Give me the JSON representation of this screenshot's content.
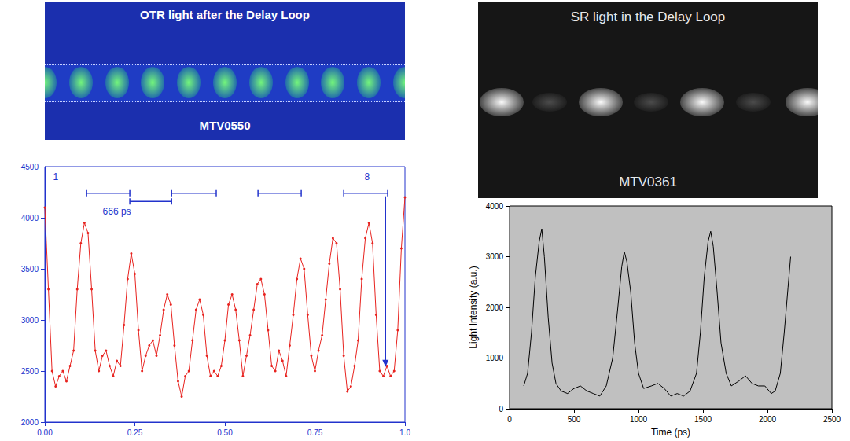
{
  "images": [
    {
      "title": "OTR light after the Delay Loop",
      "label": "MTV0550"
    },
    {
      "title": "SR light in the Delay Loop",
      "label": "MTV0361"
    }
  ],
  "chart_data": [
    {
      "type": "line",
      "x": [
        0.0,
        0.01,
        0.02,
        0.03,
        0.04,
        0.05,
        0.06,
        0.07,
        0.08,
        0.09,
        0.1,
        0.11,
        0.12,
        0.13,
        0.14,
        0.15,
        0.16,
        0.17,
        0.18,
        0.19,
        0.2,
        0.21,
        0.22,
        0.23,
        0.24,
        0.25,
        0.26,
        0.27,
        0.28,
        0.29,
        0.3,
        0.31,
        0.32,
        0.33,
        0.34,
        0.35,
        0.36,
        0.37,
        0.38,
        0.39,
        0.4,
        0.41,
        0.42,
        0.43,
        0.44,
        0.45,
        0.46,
        0.47,
        0.48,
        0.49,
        0.5,
        0.51,
        0.52,
        0.53,
        0.54,
        0.55,
        0.56,
        0.57,
        0.58,
        0.59,
        0.6,
        0.61,
        0.62,
        0.63,
        0.64,
        0.65,
        0.66,
        0.67,
        0.68,
        0.69,
        0.7,
        0.71,
        0.72,
        0.73,
        0.74,
        0.75,
        0.76,
        0.77,
        0.78,
        0.79,
        0.8,
        0.81,
        0.82,
        0.83,
        0.84,
        0.85,
        0.86,
        0.87,
        0.88,
        0.89,
        0.9,
        0.91,
        0.92,
        0.93,
        0.94,
        0.95,
        0.96,
        0.97,
        0.98,
        0.99,
        1.0
      ],
      "values": [
        4100,
        3300,
        2500,
        2350,
        2450,
        2500,
        2400,
        2550,
        2700,
        3300,
        3750,
        3950,
        3850,
        3300,
        2700,
        2500,
        2650,
        2700,
        2550,
        2450,
        2600,
        2550,
        2950,
        3400,
        3650,
        3450,
        2900,
        2500,
        2650,
        2750,
        2800,
        2650,
        2850,
        3100,
        3250,
        3150,
        2750,
        2400,
        2250,
        2450,
        2500,
        2800,
        3100,
        3200,
        3050,
        2650,
        2450,
        2500,
        2450,
        2550,
        2800,
        3150,
        3250,
        3100,
        2800,
        2450,
        2650,
        2850,
        3100,
        3350,
        3400,
        3250,
        2900,
        2550,
        2500,
        2700,
        2600,
        2450,
        2750,
        3050,
        3400,
        3600,
        3500,
        3050,
        2650,
        2500,
        2700,
        2850,
        3200,
        3550,
        3800,
        3750,
        3300,
        2650,
        2300,
        2350,
        2550,
        2800,
        3400,
        3800,
        3950,
        3750,
        3050,
        2500,
        2450,
        2550,
        2450,
        2500,
        2900,
        3700,
        4200
      ],
      "color": "#e8231f",
      "marker": "circle",
      "line_style": "solid",
      "xlim": [
        0,
        1
      ],
      "xticks": [
        {
          "value": 0,
          "label": "0.00"
        },
        0.25,
        {
          "value": 0.5,
          "label": "0.50"
        },
        0.75,
        {
          "value": 1,
          "label": "1.0"
        }
      ],
      "ylim": [
        2000,
        4500
      ],
      "yticks": [
        2000,
        2500,
        3000,
        3500,
        4000,
        4500
      ],
      "grid": false,
      "annotations": [
        {
          "text": "1",
          "x": 0.03,
          "y": 4400
        },
        {
          "text": "8",
          "x": 0.895,
          "y": 4400
        },
        {
          "text": "666 ps",
          "x": 0.2,
          "y": 4060
        }
      ],
      "brackets": [
        {
          "x": [
            0.116,
            0.236
          ],
          "y": 4240
        },
        {
          "x": [
            0.236,
            0.352
          ],
          "y": 4160
        },
        {
          "x": [
            0.352,
            0.476
          ],
          "y": 4240
        },
        {
          "x": [
            0.592,
            0.712
          ],
          "y": 4240
        },
        {
          "x": [
            0.83,
            0.952
          ],
          "y": 4240
        }
      ],
      "arrow": {
        "x": 0.946,
        "y": [
          4210,
          2540
        ]
      }
    },
    {
      "type": "line",
      "x": [
        110,
        140,
        170,
        200,
        230,
        250,
        270,
        300,
        330,
        360,
        400,
        450,
        500,
        550,
        600,
        650,
        700,
        750,
        800,
        840,
        870,
        890,
        910,
        940,
        970,
        1000,
        1040,
        1100,
        1150,
        1200,
        1250,
        1300,
        1350,
        1400,
        1450,
        1480,
        1510,
        1540,
        1560,
        1580,
        1610,
        1640,
        1680,
        1720,
        1780,
        1830,
        1880,
        1930,
        1980,
        2030,
        2060,
        2100,
        2130,
        2160,
        2180
      ],
      "values": [
        450,
        700,
        1500,
        2600,
        3300,
        3550,
        3000,
        1800,
        900,
        500,
        350,
        300,
        400,
        450,
        350,
        300,
        250,
        450,
        1000,
        2000,
        2800,
        3100,
        2900,
        2300,
        1300,
        700,
        400,
        450,
        500,
        400,
        250,
        300,
        250,
        350,
        700,
        1500,
        2600,
        3300,
        3500,
        3200,
        2300,
        1300,
        700,
        450,
        550,
        650,
        500,
        450,
        450,
        300,
        350,
        700,
        1500,
        2400,
        3000
      ],
      "color": "#000000",
      "marker": "none",
      "line_style": "solid",
      "xlabel": "Time (ps)",
      "ylabel": "Light Intensity (a.u.)",
      "xlim": [
        0,
        2500
      ],
      "xticks": [
        0,
        500,
        1000,
        1500,
        2000,
        2500
      ],
      "ylim": [
        0,
        4000
      ],
      "yticks": [
        0,
        1000,
        2000,
        3000,
        4000
      ],
      "grid": false
    }
  ]
}
